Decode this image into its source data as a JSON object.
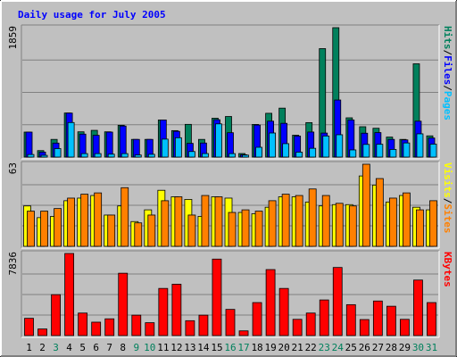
{
  "chart_data": {
    "type": "bar",
    "title": "Daily usage for July 2005",
    "colors": {
      "background": "#c0c0c0",
      "title": "#0000ff",
      "hits": "#00805c",
      "files": "#0000ff",
      "pages": "#00c0ff",
      "visits": "#ffff00",
      "sites": "#ff8000",
      "kbytes": "#ff0000",
      "weekend_day": "#00805c",
      "weekday": "#000000"
    },
    "days": [
      "1",
      "2",
      "3",
      "4",
      "5",
      "6",
      "7",
      "8",
      "9",
      "10",
      "11",
      "12",
      "13",
      "14",
      "15",
      "16",
      "17",
      "18",
      "19",
      "20",
      "21",
      "22",
      "23",
      "24",
      "25",
      "26",
      "27",
      "28",
      "29",
      "30",
      "31"
    ],
    "weekend_days": [
      3,
      9,
      10,
      16,
      17,
      23,
      24,
      30,
      31
    ],
    "panels": [
      {
        "id": "hits-files-pages",
        "max_label": "1859",
        "ylim": [
          0,
          1859
        ],
        "legend": [
          {
            "name": "Pages",
            "color": "#00c0ff"
          },
          {
            "name": "Files",
            "color": "#0000ff"
          },
          {
            "name": "Hits",
            "color": "#00805c"
          }
        ],
        "series": [
          {
            "name": "Hits",
            "values": [
              359,
              93,
              254,
              633,
              363,
              384,
              363,
              457,
              254,
              254,
              533,
              380,
              470,
              254,
              558,
              583,
              51,
              469,
              629,
              703,
              314,
              495,
              1558,
              1859,
              564,
              436,
              414,
              287,
              254,
              1340,
              305
            ]
          },
          {
            "name": "Files",
            "values": [
              359,
              72,
              201,
              632,
              330,
              313,
              359,
              446,
              254,
              254,
              533,
              370,
              197,
              202,
              537,
              350,
              34,
              460,
              516,
              485,
              302,
              360,
              345,
              820,
              533,
              343,
              352,
              254,
              247,
              516,
              274
            ]
          },
          {
            "name": "Pages",
            "values": [
              37,
              25,
              122,
              496,
              50,
              50,
              42,
              50,
              30,
              40,
              258,
              278,
              80,
              51,
              477,
              50,
              28,
              141,
              346,
              193,
              71,
              126,
              303,
              321,
              103,
              182,
              184,
              110,
              203,
              334,
              186
            ]
          }
        ]
      },
      {
        "id": "visits-sites",
        "max_label": "63",
        "ylim": [
          0,
          63
        ],
        "legend": [
          {
            "name": "Sites",
            "color": "#ff8000"
          },
          {
            "name": "Visits",
            "color": "#ffff00"
          }
        ],
        "series": [
          {
            "name": "Visits",
            "values": [
              31,
              22,
              23,
              35,
              37,
              39,
              24,
              31,
              19,
              28,
              43,
              38,
              36,
              23,
              38,
              37,
              26,
              25,
              30,
              38,
              38,
              34,
              31,
              32,
              32,
              54,
              47,
              34,
              39,
              30,
              28
            ]
          },
          {
            "name": "Sites",
            "values": [
              27,
              27,
              29,
              37,
              40,
              41,
              24,
              45,
              18,
              24,
              35,
              38,
              24,
              39,
              38,
              26,
              28,
              27,
              35,
              40,
              39,
              44,
              39,
              33,
              31,
              63,
              52,
              37,
              41,
              28,
              35
            ]
          }
        ]
      },
      {
        "id": "kbytes",
        "max_label": "7836",
        "ylim": [
          0,
          7836
        ],
        "legend": [
          {
            "name": "KBytes",
            "color": "#ff0000"
          }
        ],
        "series": [
          {
            "name": "KBytes",
            "values": [
              1650,
              630,
              3905,
              7836,
              2150,
              1280,
              1600,
              5950,
              1950,
              1230,
              4500,
              4900,
              1420,
              1950,
              7300,
              2500,
              450,
              3150,
              6300,
              4500,
              1550,
              2150,
              3400,
              6500,
              2950,
              1530,
              3300,
              2800,
              1550,
              5300,
              3150
            ]
          }
        ]
      }
    ]
  }
}
